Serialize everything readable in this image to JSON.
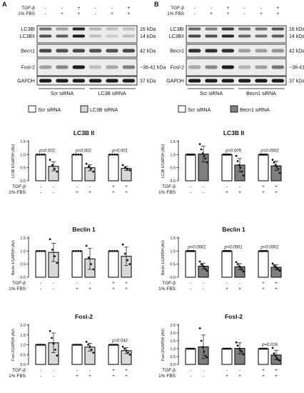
{
  "panels": [
    {
      "letter": "A",
      "treat_labels": [
        "TGF-β",
        "1% FBS"
      ],
      "treat_rows": [
        [
          "-",
          "-",
          "+",
          "-",
          "-",
          "+"
        ],
        [
          "-",
          "+",
          "+",
          "-",
          "+",
          "+"
        ]
      ],
      "blots": [
        {
          "labels": [
            "LC3BI",
            "LC3BII"
          ],
          "kda": [
            "16 kDa",
            "14 kDa"
          ]
        },
        {
          "labels": [
            "Becn1"
          ],
          "kda": [
            "42 kDa"
          ]
        },
        {
          "labels": [
            "Fosl-2"
          ],
          "kda": [
            "~38-41 kDa"
          ]
        },
        {
          "labels": [
            "GAPDH"
          ],
          "kda": [
            "37 kDa"
          ]
        }
      ],
      "group_labels": [
        "Scr siRNA",
        "LC3B siRNA"
      ],
      "legend": [
        {
          "label": "Scr siRNA",
          "color": "#ffffff"
        },
        {
          "label": "LC3B siRNA",
          "color": "#d9d9d9"
        }
      ]
    },
    {
      "letter": "B",
      "treat_labels": [
        "TGF-β",
        "1% FBS"
      ],
      "treat_rows": [
        [
          "-",
          "-",
          "+",
          "-",
          "-",
          "+"
        ],
        [
          "-",
          "+",
          "+",
          "-",
          "+",
          "+"
        ]
      ],
      "blots": [
        {
          "labels": [
            "LC3BI",
            "LC3BII"
          ],
          "kda": [
            "16 kDa",
            "14 kDa"
          ]
        },
        {
          "labels": [
            "Becn1"
          ],
          "kda": [
            "42 kDa"
          ]
        },
        {
          "labels": [
            "Fosl-2"
          ],
          "kda": [
            "~38-41 kDa"
          ]
        },
        {
          "labels": [
            "GAPDH"
          ],
          "kda": [
            "37 kDa"
          ]
        }
      ],
      "group_labels": [
        "Scr siRNA",
        "Becn1 siRNA"
      ],
      "legend": [
        {
          "label": "Scr siRNA",
          "color": "#ffffff"
        },
        {
          "label": "Becn1 siRNA",
          "color": "#7f7f7f"
        }
      ]
    }
  ],
  "chart_data": [
    {
      "type": "bar",
      "panel": "A",
      "title": "LC3B II",
      "ylabel": "LC3B II/GAPDH (AU)",
      "ylim": [
        0,
        1.5
      ],
      "yticks": [
        "0.0",
        "0.5",
        "1.0",
        "1.5"
      ],
      "x_rows": {
        "labels": [
          "TGF-β",
          "1% FBS"
        ],
        "rows": [
          [
            "-",
            "-",
            "-",
            "-",
            "+",
            "+"
          ],
          [
            "-",
            "-",
            "+",
            "+",
            "+",
            "+"
          ]
        ]
      },
      "series": [
        {
          "name": "Scr siRNA",
          "color": "#ffffff"
        },
        {
          "name": "LC3B siRNA",
          "color": "#d9d9d9"
        }
      ],
      "values": [
        1.0,
        0.55,
        1.0,
        0.5,
        1.0,
        0.47
      ],
      "errors": [
        0.0,
        0.17,
        0.0,
        0.12,
        0.0,
        0.08
      ],
      "points": [
        [
          1,
          1,
          1,
          1
        ],
        [
          0.8,
          0.6,
          0.45,
          0.35
        ],
        [
          1,
          1,
          1,
          1
        ],
        [
          0.65,
          0.55,
          0.45,
          0.35
        ],
        [
          1,
          1,
          1,
          1
        ],
        [
          0.6,
          0.5,
          0.45,
          0.4
        ]
      ],
      "pvalues": [
        {
          "pair": 0,
          "text": "p=0.002"
        },
        {
          "pair": 1,
          "text": "p=0.002"
        },
        {
          "pair": 2,
          "text": "p<0.001"
        }
      ]
    },
    {
      "type": "bar",
      "panel": "B",
      "title": "LC3B II",
      "ylabel": "LC3B II/GAPDH (AU)",
      "ylim": [
        0,
        1.5
      ],
      "yticks": [
        "0.0",
        "0.5",
        "1.0",
        "1.5"
      ],
      "x_rows": {
        "labels": [
          "TGF-β",
          "1% FBS"
        ],
        "rows": [
          [
            "-",
            "-",
            "-",
            "-",
            "+",
            "+"
          ],
          [
            "-",
            "-",
            "+",
            "+",
            "+",
            "+"
          ]
        ]
      },
      "series": [
        {
          "name": "Scr siRNA",
          "color": "#ffffff"
        },
        {
          "name": "Becn1 siRNA",
          "color": "#7f7f7f"
        }
      ],
      "values": [
        1.0,
        1.02,
        1.0,
        0.6,
        1.0,
        0.57
      ],
      "errors": [
        0.0,
        0.3,
        0.0,
        0.25,
        0.0,
        0.18
      ],
      "points": [
        [
          1,
          1,
          1,
          1,
          1,
          1
        ],
        [
          1.4,
          1.2,
          1.05,
          0.95,
          0.85,
          0.7
        ],
        [
          1,
          1,
          1,
          1,
          1,
          1
        ],
        [
          0.95,
          0.75,
          0.6,
          0.5,
          0.35,
          0.2
        ],
        [
          1,
          1,
          1,
          1,
          1,
          1
        ],
        [
          0.8,
          0.7,
          0.6,
          0.55,
          0.45,
          0.3
        ]
      ],
      "pvalues": [
        {
          "pair": 1,
          "text": "p=0.005"
        },
        {
          "pair": 2,
          "text": "p=0.0002"
        }
      ]
    },
    {
      "type": "bar",
      "panel": "A",
      "title": "Beclin 1",
      "ylabel": "Beclin 1/GAPDH (AU)",
      "ylim": [
        0,
        1.5
      ],
      "yticks": [
        "0.0",
        "0.5",
        "1.0",
        "1.5"
      ],
      "x_rows": {
        "labels": [
          "TGF-β",
          "1% FBS"
        ],
        "rows": [
          [
            "-",
            "-",
            "-",
            "-",
            "+",
            "+"
          ],
          [
            "-",
            "-",
            "+",
            "+",
            "+",
            "+"
          ]
        ]
      },
      "series": [
        {
          "name": "Scr siRNA",
          "color": "#ffffff"
        },
        {
          "name": "LC3B siRNA",
          "color": "#d9d9d9"
        }
      ],
      "values": [
        1.0,
        0.95,
        1.0,
        0.7,
        1.0,
        0.8
      ],
      "errors": [
        0.0,
        0.35,
        0.0,
        0.4,
        0.0,
        0.35
      ],
      "points": [
        [
          1,
          1,
          1,
          1
        ],
        [
          1.45,
          1.05,
          0.8,
          0.55
        ],
        [
          1,
          1,
          1,
          1
        ],
        [
          1.2,
          0.75,
          0.5,
          0.3
        ],
        [
          1,
          1,
          1,
          1
        ],
        [
          1.25,
          0.9,
          0.65,
          0.5
        ]
      ],
      "pvalues": []
    },
    {
      "type": "bar",
      "panel": "B",
      "title": "Beclin 1",
      "ylabel": "Beclin 1/GAPDH (AU)",
      "ylim": [
        0,
        1.5
      ],
      "yticks": [
        "0.0",
        "0.5",
        "1.0",
        "1.5"
      ],
      "x_rows": {
        "labels": [
          "TGF-β",
          "1% FBS"
        ],
        "rows": [
          [
            "-",
            "-",
            "-",
            "-",
            "+",
            "+"
          ],
          [
            "-",
            "-",
            "+",
            "+",
            "+",
            "+"
          ]
        ]
      },
      "series": [
        {
          "name": "Scr siRNA",
          "color": "#ffffff"
        },
        {
          "name": "Becn1 siRNA",
          "color": "#7f7f7f"
        }
      ],
      "values": [
        1.0,
        0.42,
        1.0,
        0.4,
        1.0,
        0.38
      ],
      "errors": [
        0.0,
        0.12,
        0.0,
        0.12,
        0.0,
        0.1
      ],
      "points": [
        [
          1,
          1,
          1,
          1,
          1,
          1
        ],
        [
          0.6,
          0.5,
          0.45,
          0.4,
          0.32,
          0.25
        ],
        [
          1,
          1,
          1,
          1,
          1,
          1
        ],
        [
          0.58,
          0.5,
          0.42,
          0.38,
          0.3,
          0.22
        ],
        [
          1,
          1,
          1,
          1,
          1,
          1
        ],
        [
          0.52,
          0.45,
          0.4,
          0.35,
          0.3,
          0.25
        ]
      ],
      "pvalues": [
        {
          "pair": 0,
          "text": "p<0.0001"
        },
        {
          "pair": 1,
          "text": "p<0.0001"
        },
        {
          "pair": 2,
          "text": "p<0.0001"
        }
      ]
    },
    {
      "type": "bar",
      "panel": "A",
      "title": "Fosl-2",
      "ylabel": "Fosl-2/GAPDH (AU)",
      "ylim": [
        0,
        2.0
      ],
      "yticks": [
        "0.0",
        "0.5",
        "1.0",
        "1.5",
        "2.0"
      ],
      "x_rows": {
        "labels": [
          "TGF-β",
          "1% FBS"
        ],
        "rows": [
          [
            "-",
            "-",
            "-",
            "-",
            "+",
            "+"
          ],
          [
            "-",
            "-",
            "+",
            "+",
            "+",
            "+"
          ]
        ]
      },
      "series": [
        {
          "name": "Scr siRNA",
          "color": "#ffffff"
        },
        {
          "name": "LC3B siRNA",
          "color": "#d9d9d9"
        }
      ],
      "values": [
        1.0,
        1.1,
        1.0,
        0.88,
        1.0,
        0.7
      ],
      "errors": [
        0.0,
        0.5,
        0.0,
        0.2,
        0.0,
        0.15
      ],
      "points": [
        [
          1,
          1,
          1,
          1,
          1
        ],
        [
          1.7,
          1.35,
          1.05,
          0.75,
          0.45
        ],
        [
          1,
          1,
          1,
          1,
          1
        ],
        [
          1.15,
          1.0,
          0.9,
          0.75,
          0.6
        ],
        [
          1,
          1,
          1,
          1,
          1
        ],
        [
          0.9,
          0.8,
          0.7,
          0.6,
          0.5
        ]
      ],
      "pvalues": [
        {
          "pair": 2,
          "text": "p=0.042"
        }
      ]
    },
    {
      "type": "bar",
      "panel": "B",
      "title": "Fosl-2",
      "ylabel": "Fosl-2/GAPDH (AU)",
      "ylim": [
        0,
        2.5
      ],
      "yticks": [
        "0.0",
        "0.5",
        "1.0",
        "1.5",
        "2.0",
        "2.5"
      ],
      "x_rows": {
        "labels": [
          "TGF-β",
          "1% FBS"
        ],
        "rows": [
          [
            "-",
            "-",
            "-",
            "-",
            "+",
            "+"
          ],
          [
            "-",
            "-",
            "+",
            "+",
            "+",
            "+"
          ]
        ]
      },
      "series": [
        {
          "name": "Scr siRNA",
          "color": "#ffffff"
        },
        {
          "name": "Becn1 siRNA",
          "color": "#7f7f7f"
        }
      ],
      "values": [
        1.0,
        1.12,
        1.0,
        1.02,
        1.0,
        0.6
      ],
      "errors": [
        0.0,
        0.75,
        0.0,
        0.35,
        0.0,
        0.3
      ],
      "points": [
        [
          1,
          1,
          1,
          1,
          1,
          1
        ],
        [
          2.3,
          1.5,
          1.1,
          0.8,
          0.55,
          0.45
        ],
        [
          1,
          1,
          1,
          1,
          1,
          1
        ],
        [
          1.4,
          1.2,
          1.0,
          0.9,
          0.8,
          0.65
        ],
        [
          1,
          1,
          1,
          1,
          1,
          1
        ],
        [
          1.05,
          0.7,
          0.55,
          0.4,
          0.3,
          0.25
        ]
      ],
      "pvalues": [
        {
          "pair": 2,
          "text": "p=0.016"
        }
      ]
    }
  ]
}
